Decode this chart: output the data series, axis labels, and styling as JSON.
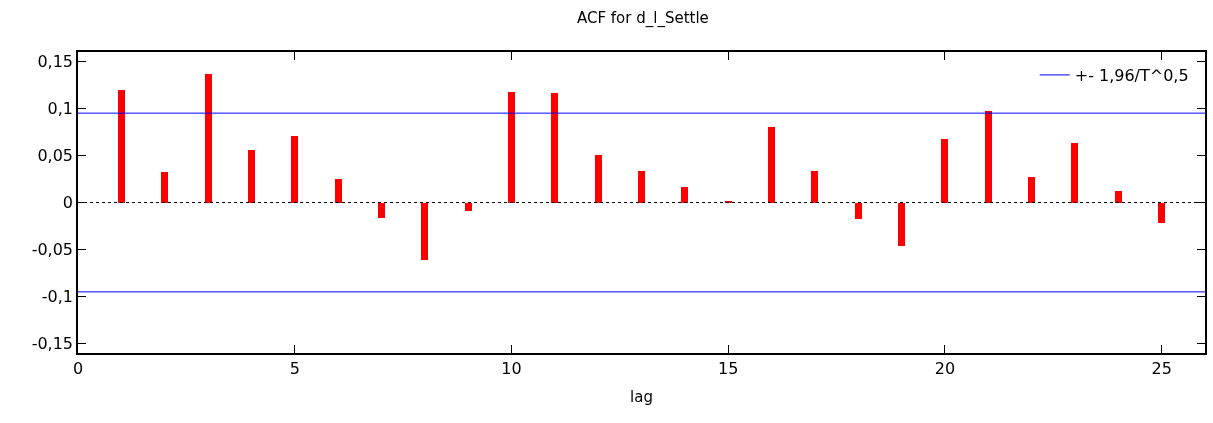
{
  "chart_data": {
    "type": "bar",
    "title": "ACF for d_l_Settle",
    "xlabel": "lag",
    "x": [
      1,
      2,
      3,
      4,
      5,
      6,
      7,
      8,
      9,
      10,
      11,
      12,
      13,
      14,
      15,
      16,
      17,
      18,
      19,
      20,
      21,
      22,
      23,
      24,
      25
    ],
    "series": [
      {
        "color": "#ff0000",
        "values": [
          0.12,
          0.032,
          0.137,
          0.056,
          0.071,
          0.025,
          -0.017,
          -0.061,
          -0.009,
          0.118,
          0.116,
          0.051,
          0.033,
          0.016,
          0.001,
          0.08,
          0.033,
          -0.018,
          -0.046,
          0.068,
          0.097,
          0.027,
          0.063,
          0.012,
          -0.022
        ]
      }
    ],
    "xlim": [
      0,
      26
    ],
    "xticks": [
      0,
      5,
      10,
      15,
      20,
      25
    ],
    "ylim": [
      -0.16,
      0.16
    ],
    "yticks": [
      {
        "value": -0.15,
        "label": "-0,15"
      },
      {
        "value": -0.1,
        "label": "-0,1"
      },
      {
        "value": -0.05,
        "label": "-0,05"
      },
      0,
      {
        "value": 0.05,
        "label": "0,05"
      },
      {
        "value": 0.1,
        "label": "0,1"
      },
      {
        "value": 0.15,
        "label": "0,15"
      }
    ],
    "ref_lines": [
      {
        "axis": "y",
        "value": 0.095,
        "label": "+- 1,96/T^0,5",
        "color": "#0000ff",
        "line_style": "solid"
      },
      {
        "axis": "y",
        "value": -0.095,
        "label": null,
        "color": "#0000ff",
        "line_style": "solid"
      },
      {
        "axis": "y",
        "value": 0,
        "label": null,
        "color": "#000000",
        "line_style": "dotted"
      }
    ],
    "legend": "top right"
  }
}
